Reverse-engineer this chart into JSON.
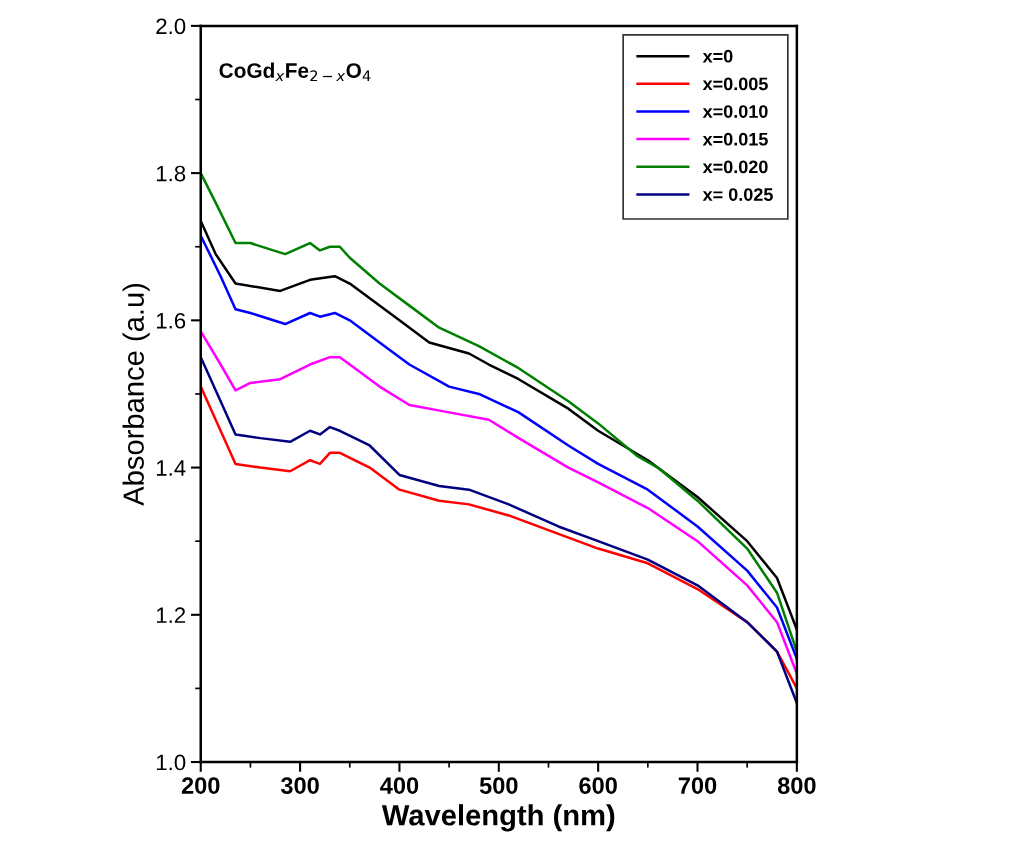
{
  "chart_data": {
    "type": "line",
    "xlabel": "Wavelength (nm)",
    "ylabel": "Absorbance (a.u)",
    "annotations": [
      "CoGd$_{x}$Fe$_{2−x}$O$_{4}$"
    ],
    "xlim": [
      200,
      800
    ],
    "ylim": [
      1.0,
      2.0
    ],
    "xticks": [
      200,
      300,
      400,
      500,
      600,
      700,
      800
    ],
    "yticks": [
      {
        "value": 1.0,
        "label": "1.0"
      },
      1.2,
      1.4,
      1.6,
      1.8,
      {
        "value": 2.0,
        "label": "2.0"
      }
    ],
    "grid": false,
    "legend": "top right",
    "marker": "none",
    "line_style": "solid",
    "series": [
      {
        "name": "x=0",
        "color": "#000000",
        "x": [
          200,
          215,
          235,
          280,
          310,
          335,
          350,
          400,
          430,
          470,
          490,
          520,
          570,
          600,
          650,
          700,
          750,
          780,
          800
        ],
        "values": [
          1.735,
          1.69,
          1.65,
          1.64,
          1.655,
          1.66,
          1.65,
          1.6,
          1.57,
          1.555,
          1.54,
          1.52,
          1.48,
          1.45,
          1.41,
          1.36,
          1.3,
          1.25,
          1.18
        ]
      },
      {
        "name": "x=0.005",
        "color": "#ff0000",
        "x": [
          200,
          220,
          235,
          260,
          290,
          310,
          320,
          330,
          340,
          370,
          400,
          440,
          470,
          510,
          560,
          600,
          650,
          700,
          750,
          780,
          800
        ],
        "values": [
          1.51,
          1.45,
          1.405,
          1.4,
          1.395,
          1.41,
          1.405,
          1.42,
          1.42,
          1.4,
          1.37,
          1.355,
          1.35,
          1.335,
          1.31,
          1.29,
          1.27,
          1.235,
          1.19,
          1.15,
          1.1
        ]
      },
      {
        "name": "x=0.010",
        "color": "#0000ff",
        "x": [
          200,
          220,
          235,
          250,
          285,
          310,
          320,
          335,
          350,
          380,
          410,
          450,
          480,
          520,
          570,
          600,
          650,
          700,
          750,
          780,
          800
        ],
        "values": [
          1.715,
          1.66,
          1.615,
          1.61,
          1.595,
          1.61,
          1.605,
          1.61,
          1.6,
          1.57,
          1.54,
          1.51,
          1.5,
          1.475,
          1.43,
          1.405,
          1.37,
          1.32,
          1.26,
          1.21,
          1.14
        ]
      },
      {
        "name": "x=0.015",
        "color": "#ff00ff",
        "x": [
          200,
          220,
          235,
          250,
          280,
          310,
          330,
          340,
          350,
          380,
          410,
          450,
          490,
          520,
          570,
          600,
          650,
          700,
          750,
          780,
          800
        ],
        "values": [
          1.585,
          1.54,
          1.505,
          1.515,
          1.52,
          1.54,
          1.55,
          1.55,
          1.54,
          1.51,
          1.485,
          1.475,
          1.465,
          1.44,
          1.4,
          1.38,
          1.345,
          1.3,
          1.24,
          1.19,
          1.12
        ]
      },
      {
        "name": "x=0.020",
        "color": "#008000",
        "x": [
          200,
          215,
          235,
          250,
          285,
          310,
          320,
          330,
          340,
          350,
          380,
          410,
          440,
          480,
          520,
          570,
          600,
          640,
          660,
          700,
          750,
          780,
          800
        ],
        "values": [
          1.8,
          1.76,
          1.705,
          1.705,
          1.69,
          1.705,
          1.695,
          1.7,
          1.7,
          1.685,
          1.65,
          1.62,
          1.59,
          1.565,
          1.535,
          1.49,
          1.46,
          1.415,
          1.4,
          1.355,
          1.29,
          1.23,
          1.15
        ]
      },
      {
        "name": "x= 0.025",
        "color": "#000080",
        "x": [
          200,
          220,
          235,
          260,
          290,
          310,
          320,
          330,
          340,
          370,
          400,
          440,
          470,
          510,
          560,
          600,
          650,
          700,
          750,
          780,
          800
        ],
        "values": [
          1.55,
          1.49,
          1.445,
          1.44,
          1.435,
          1.45,
          1.445,
          1.455,
          1.45,
          1.43,
          1.39,
          1.375,
          1.37,
          1.35,
          1.32,
          1.3,
          1.275,
          1.24,
          1.19,
          1.15,
          1.08
        ]
      }
    ]
  }
}
